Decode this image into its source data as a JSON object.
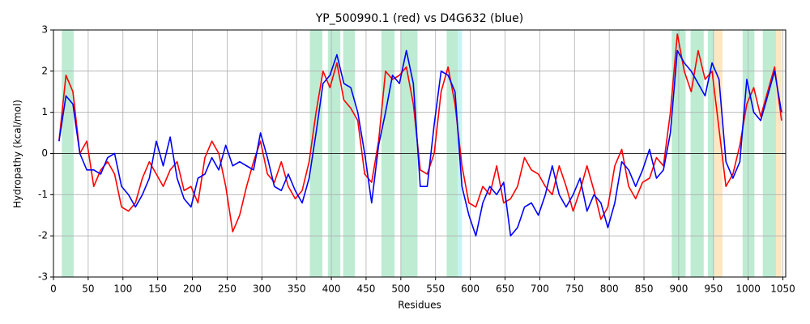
{
  "chart_data": {
    "type": "line",
    "title": "YP_500990.1 (red) vs D4G632 (blue)",
    "x_label": "Residues",
    "y_label": "Hydropathy (kcal/mol)",
    "x": [
      8,
      18,
      28,
      38,
      48,
      58,
      68,
      78,
      88,
      98,
      108,
      118,
      128,
      138,
      148,
      158,
      168,
      178,
      188,
      198,
      208,
      218,
      228,
      238,
      248,
      258,
      268,
      278,
      288,
      298,
      308,
      318,
      328,
      338,
      348,
      358,
      368,
      378,
      388,
      398,
      408,
      418,
      428,
      438,
      448,
      458,
      468,
      478,
      488,
      498,
      508,
      518,
      528,
      538,
      548,
      558,
      568,
      578,
      588,
      598,
      608,
      618,
      628,
      638,
      648,
      658,
      668,
      678,
      688,
      698,
      708,
      718,
      728,
      738,
      748,
      758,
      768,
      778,
      788,
      798,
      808,
      818,
      828,
      838,
      848,
      858,
      868,
      878,
      888,
      898,
      908,
      918,
      928,
      938,
      948,
      958,
      968,
      978,
      988,
      998,
      1008,
      1018,
      1028,
      1038,
      1048
    ],
    "series": [
      {
        "name": "YP_500990.1",
        "color": "#ff0000",
        "values": [
          0.3,
          1.9,
          1.5,
          0.0,
          0.3,
          -0.8,
          -0.4,
          -0.2,
          -0.5,
          -1.3,
          -1.4,
          -1.2,
          -0.6,
          -0.2,
          -0.5,
          -0.8,
          -0.4,
          -0.2,
          -0.9,
          -0.8,
          -1.2,
          -0.1,
          0.3,
          0.0,
          -0.8,
          -1.9,
          -1.5,
          -0.8,
          -0.2,
          0.3,
          -0.5,
          -0.7,
          -0.2,
          -0.8,
          -1.1,
          -0.9,
          -0.2,
          1.0,
          2.0,
          1.6,
          2.2,
          1.3,
          1.1,
          0.8,
          -0.5,
          -0.7,
          0.3,
          2.0,
          1.8,
          1.9,
          2.1,
          1.2,
          -0.4,
          -0.5,
          0.0,
          1.5,
          2.1,
          1.2,
          -0.3,
          -1.2,
          -1.3,
          -0.8,
          -1.0,
          -0.3,
          -1.2,
          -1.1,
          -0.8,
          -0.1,
          -0.4,
          -0.5,
          -0.8,
          -1.0,
          -0.3,
          -0.8,
          -1.4,
          -0.9,
          -0.3,
          -0.9,
          -1.6,
          -1.3,
          -0.3,
          0.1,
          -0.8,
          -1.1,
          -0.7,
          -0.6,
          -0.1,
          -0.3,
          1.0,
          2.9,
          2.0,
          1.5,
          2.5,
          1.8,
          2.0,
          0.6,
          -0.8,
          -0.5,
          0.2,
          1.2,
          1.6,
          0.9,
          1.5,
          2.1,
          0.8
        ]
      },
      {
        "name": "D4G632",
        "color": "#0000ff",
        "values": [
          0.3,
          1.4,
          1.2,
          0.0,
          -0.4,
          -0.4,
          -0.5,
          -0.1,
          0.0,
          -0.8,
          -1.0,
          -1.3,
          -1.0,
          -0.6,
          0.3,
          -0.3,
          0.4,
          -0.6,
          -1.1,
          -1.3,
          -0.6,
          -0.5,
          -0.1,
          -0.4,
          0.2,
          -0.3,
          -0.2,
          -0.3,
          -0.4,
          0.5,
          -0.1,
          -0.8,
          -0.9,
          -0.5,
          -0.9,
          -1.2,
          -0.6,
          0.5,
          1.7,
          1.9,
          2.4,
          1.7,
          1.6,
          1.0,
          0.0,
          -1.2,
          0.2,
          1.0,
          1.9,
          1.7,
          2.5,
          1.7,
          -0.8,
          -0.8,
          0.7,
          2.0,
          1.9,
          1.5,
          -0.8,
          -1.5,
          -2.0,
          -1.2,
          -0.8,
          -1.0,
          -0.7,
          -2.0,
          -1.8,
          -1.3,
          -1.2,
          -1.5,
          -1.0,
          -0.3,
          -1.0,
          -1.3,
          -1.0,
          -0.6,
          -1.4,
          -1.0,
          -1.2,
          -1.8,
          -1.2,
          -0.2,
          -0.4,
          -0.8,
          -0.4,
          0.1,
          -0.6,
          -0.4,
          0.5,
          2.5,
          2.2,
          2.0,
          1.7,
          1.4,
          2.2,
          1.8,
          -0.2,
          -0.6,
          -0.2,
          1.8,
          1.0,
          0.8,
          1.4,
          2.0,
          1.0
        ]
      }
    ],
    "highlights": [
      {
        "start": 12,
        "end": 29,
        "color": "#bdecd3"
      },
      {
        "start": 369,
        "end": 387,
        "color": "#bdecd3"
      },
      {
        "start": 395,
        "end": 413,
        "color": "#bdecd3"
      },
      {
        "start": 417,
        "end": 434,
        "color": "#bdecd3"
      },
      {
        "start": 472,
        "end": 491,
        "color": "#bdecd3"
      },
      {
        "start": 500,
        "end": 524,
        "color": "#bdecd3"
      },
      {
        "start": 566,
        "end": 582,
        "color": "#bdecd3"
      },
      {
        "start": 582,
        "end": 588,
        "color": "#c6f3f3"
      },
      {
        "start": 890,
        "end": 910,
        "color": "#bdecd3"
      },
      {
        "start": 917,
        "end": 936,
        "color": "#bdecd3"
      },
      {
        "start": 942,
        "end": 951,
        "color": "#bdecd3"
      },
      {
        "start": 951,
        "end": 963,
        "color": "#fde6c2"
      },
      {
        "start": 992,
        "end": 1009,
        "color": "#bdecd3"
      },
      {
        "start": 1021,
        "end": 1040,
        "color": "#bdecd3"
      },
      {
        "start": 1040,
        "end": 1048,
        "color": "#fde6c2"
      }
    ],
    "xlim": [
      0,
      1054
    ],
    "ylim": [
      -3,
      3
    ],
    "xticks": [
      0,
      50,
      100,
      150,
      200,
      250,
      300,
      350,
      400,
      450,
      500,
      550,
      600,
      650,
      700,
      750,
      800,
      850,
      900,
      950,
      1000,
      1050
    ],
    "yticks": [
      -3,
      -2,
      -1,
      0,
      1,
      2,
      3
    ],
    "grid": true
  }
}
